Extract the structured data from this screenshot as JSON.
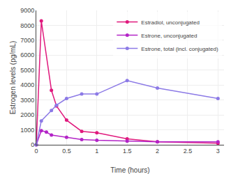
{
  "chart_data": {
    "type": "line",
    "x_label": "Time (hours)",
    "y_label": "Estrogen levels (pg/mL)",
    "xlim": [
      0,
      3.1
    ],
    "xticks": [
      0,
      0.5,
      1,
      1.5,
      2,
      2.5,
      3
    ],
    "ylim": [
      0,
      9000
    ],
    "yticks": [
      0,
      1000,
      2000,
      3000,
      4000,
      5000,
      6000,
      7000,
      8000,
      9000
    ],
    "grid": true,
    "legend": "top-right",
    "marker": "circle",
    "series": [
      {
        "name": "Estradiol, unconjugated",
        "color": "#e0197d",
        "x": [
          0,
          0.083,
          0.25,
          0.333,
          0.5,
          0.75,
          1,
          1.5,
          2,
          3
        ],
        "values": [
          0,
          8300,
          3650,
          2600,
          1650,
          900,
          800,
          400,
          200,
          100
        ]
      },
      {
        "name": "Estrone, unconjugated",
        "color": "#b324c7",
        "x": [
          0,
          0.083,
          0.167,
          0.25,
          0.5,
          0.75,
          1,
          1.5,
          2,
          3
        ],
        "values": [
          0,
          950,
          850,
          650,
          500,
          350,
          300,
          250,
          200,
          200
        ]
      },
      {
        "name": "Estrone, total (incl. conjugated)",
        "color": "#8c7ae6",
        "x": [
          0,
          0.083,
          0.25,
          0.333,
          0.5,
          0.75,
          1,
          1.5,
          2,
          3
        ],
        "values": [
          0,
          1600,
          2300,
          2650,
          3100,
          3400,
          3400,
          4300,
          3800,
          3100
        ]
      }
    ]
  }
}
